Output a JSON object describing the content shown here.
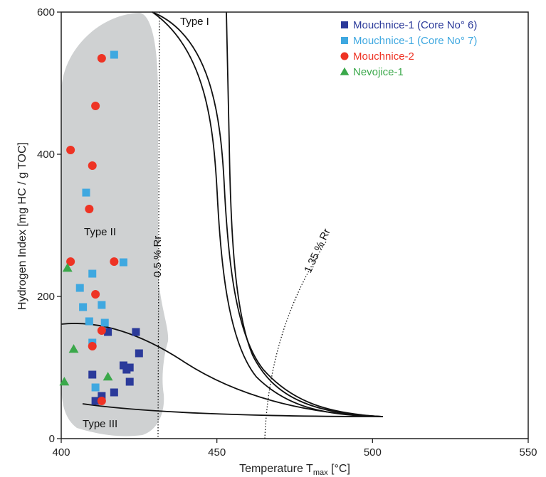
{
  "chart_data": {
    "type": "scatter",
    "xlabel": "Temperature T",
    "xlabel_sub": "max",
    "xlabel_unit": " [°C]",
    "ylabel": "Hydrogen Index [mg HC / g TOC]",
    "xlim": [
      400,
      550
    ],
    "ylim": [
      0,
      600
    ],
    "x_ticks": [
      400,
      450,
      500,
      550
    ],
    "y_ticks": [
      0,
      200,
      400,
      600
    ],
    "grid": false,
    "legend_position": "top-right",
    "region_labels": {
      "type_i": "Type I",
      "type_ii": "Type II",
      "type_iii": "Type III",
      "rr_05": "0.5 % Rr",
      "rr_135": "1.35 % Rr"
    },
    "series": [
      {
        "name": "Mouchnice-1 (Core No° 6)",
        "marker": "square",
        "color": "#2b3a9a",
        "points": [
          [
            415,
            150
          ],
          [
            424,
            150
          ],
          [
            410,
            90
          ],
          [
            420,
            103
          ],
          [
            422,
            100
          ],
          [
            421,
            97
          ],
          [
            425,
            120
          ],
          [
            422,
            80
          ],
          [
            417,
            65
          ],
          [
            413,
            60
          ],
          [
            411,
            53
          ]
        ]
      },
      {
        "name": "Mouchnice-1 (Core No° 7)",
        "marker": "square",
        "color": "#3fa8e0",
        "points": [
          [
            417,
            540
          ],
          [
            408,
            346
          ],
          [
            410,
            232
          ],
          [
            420,
            248
          ],
          [
            406,
            212
          ],
          [
            407,
            185
          ],
          [
            413,
            188
          ],
          [
            414,
            163
          ],
          [
            409,
            165
          ],
          [
            410,
            135
          ],
          [
            411,
            72
          ]
        ]
      },
      {
        "name": "Mouchnice-2",
        "marker": "circle",
        "color": "#ee3324",
        "points": [
          [
            413,
            535
          ],
          [
            411,
            468
          ],
          [
            403,
            406
          ],
          [
            410,
            384
          ],
          [
            409,
            323
          ],
          [
            403,
            249
          ],
          [
            417,
            249
          ],
          [
            411,
            203
          ],
          [
            413,
            152
          ],
          [
            410,
            130
          ],
          [
            413,
            53
          ]
        ]
      },
      {
        "name": "Nevojice-1",
        "marker": "triangle",
        "color": "#3aa84a",
        "points": [
          [
            402,
            240
          ],
          [
            404,
            126
          ],
          [
            415,
            87
          ],
          [
            401,
            80
          ]
        ]
      }
    ]
  }
}
